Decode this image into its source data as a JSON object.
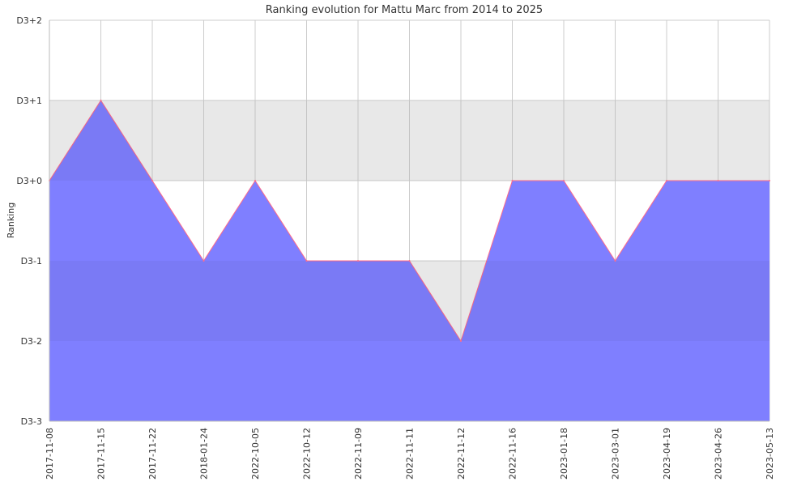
{
  "chart_data": {
    "type": "area",
    "title": "Ranking evolution for Mattu Marc from 2014 to 2025",
    "xlabel": "",
    "ylabel": "Ranking",
    "x": [
      "2017-11-08",
      "2017-11-15",
      "2017-11-22",
      "2018-01-24",
      "2022-10-05",
      "2022-10-12",
      "2022-11-09",
      "2022-11-11",
      "2022-11-12",
      "2022-11-16",
      "2023-01-18",
      "2023-03-01",
      "2023-04-19",
      "2023-04-26",
      "2023-05-13"
    ],
    "values": [
      0,
      1,
      0,
      -1,
      0,
      -1,
      -1,
      -1,
      -2,
      0,
      0,
      -1,
      0,
      0,
      0
    ],
    "y_ticks": [
      {
        "value": 2,
        "label": "D3+2"
      },
      {
        "value": 1,
        "label": "D3+1"
      },
      {
        "value": 0,
        "label": "D3+0"
      },
      {
        "value": -1,
        "label": "D3-1"
      },
      {
        "value": -2,
        "label": "D3-2"
      },
      {
        "value": -3,
        "label": "D3-3"
      }
    ],
    "ylim": [
      -3,
      2
    ],
    "grid": true,
    "band_shading": "alternating",
    "colors": {
      "fill": "#7f7fff",
      "line": "#ff6b8a",
      "grid": "#cccccc",
      "band": "#f2f2f2"
    }
  }
}
